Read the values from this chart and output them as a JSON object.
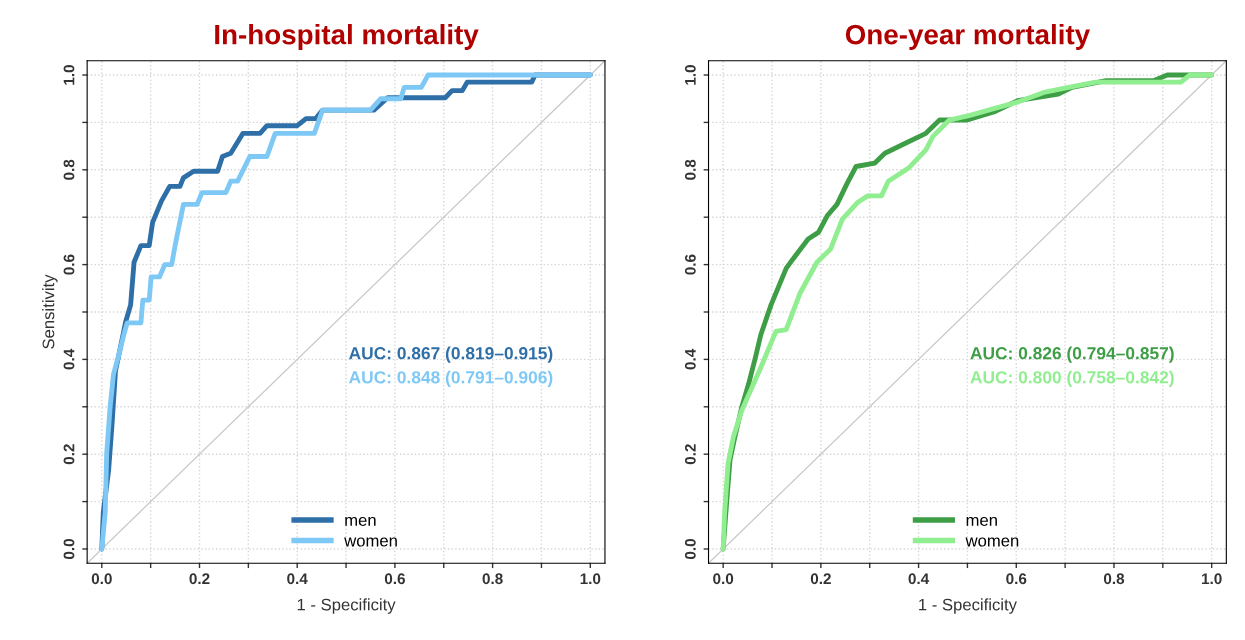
{
  "chart_data": [
    {
      "type": "line",
      "title": "In-hospital mortality",
      "xlabel": "1 - Specificity",
      "ylabel": "Sensitivity",
      "xlim": [
        -0.03,
        1.03
      ],
      "ylim": [
        -0.03,
        1.03
      ],
      "xticks": [
        {
          "value": 0,
          "label": "0.0"
        },
        {
          "value": 0.1,
          "label": null
        },
        {
          "value": 0.2,
          "label": "0.2"
        },
        {
          "value": 0.3,
          "label": null
        },
        {
          "value": 0.4,
          "label": "0.4"
        },
        {
          "value": 0.5,
          "label": null
        },
        {
          "value": 0.6,
          "label": "0.6"
        },
        {
          "value": 0.7,
          "label": null
        },
        {
          "value": 0.8,
          "label": "0.8"
        },
        {
          "value": 0.9,
          "label": null
        },
        {
          "value": 1,
          "label": "1.0"
        }
      ],
      "yticks": [
        {
          "value": 0,
          "label": "0.0"
        },
        {
          "value": 0.1,
          "label": null
        },
        {
          "value": 0.2,
          "label": "0.2"
        },
        {
          "value": 0.3,
          "label": null
        },
        {
          "value": 0.4,
          "label": "0.4"
        },
        {
          "value": 0.5,
          "label": null
        },
        {
          "value": 0.6,
          "label": "0.6"
        },
        {
          "value": 0.7,
          "label": null
        },
        {
          "value": 0.8,
          "label": "0.8"
        },
        {
          "value": 0.9,
          "label": null
        },
        {
          "value": 1,
          "label": "1.0"
        }
      ],
      "grid": true,
      "legend": "bottom",
      "annotations": [
        "AUC: 0.867 (0.819–0.915)",
        "AUC: 0.848 (0.791–0.906)"
      ],
      "series": [
        {
          "name": "men",
          "color": "#2e6fa8",
          "x": [
            0,
            0.003,
            0.014,
            0.021,
            0.028,
            0.035,
            0.049,
            0.059,
            0.066,
            0.08,
            0.097,
            0.104,
            0.122,
            0.139,
            0.16,
            0.167,
            0.188,
            0.237,
            0.247,
            0.264,
            0.289,
            0.324,
            0.338,
            0.4,
            0.418,
            0.438,
            0.452,
            0.557,
            0.585,
            0.703,
            0.717,
            0.738,
            0.748,
            0.88,
            0.887,
            1
          ],
          "values": [
            0,
            0.077,
            0.167,
            0.264,
            0.376,
            0.41,
            0.48,
            0.515,
            0.605,
            0.64,
            0.64,
            0.689,
            0.734,
            0.765,
            0.765,
            0.783,
            0.797,
            0.797,
            0.828,
            0.835,
            0.877,
            0.877,
            0.893,
            0.893,
            0.908,
            0.908,
            0.926,
            0.926,
            0.952,
            0.952,
            0.967,
            0.967,
            0.985,
            0.985,
            1,
            1
          ]
        },
        {
          "name": "women",
          "color": "#7ec8f5",
          "x": [
            0,
            0.007,
            0.01,
            0.017,
            0.024,
            0.035,
            0.045,
            0.052,
            0.08,
            0.084,
            0.097,
            0.101,
            0.118,
            0.129,
            0.143,
            0.15,
            0.167,
            0.195,
            0.205,
            0.254,
            0.264,
            0.278,
            0.303,
            0.338,
            0.355,
            0.435,
            0.452,
            0.55,
            0.571,
            0.612,
            0.619,
            0.654,
            0.668,
            1
          ],
          "values": [
            0,
            0.077,
            0.202,
            0.299,
            0.369,
            0.41,
            0.452,
            0.477,
            0.477,
            0.525,
            0.525,
            0.574,
            0.574,
            0.6,
            0.6,
            0.64,
            0.727,
            0.727,
            0.752,
            0.752,
            0.776,
            0.776,
            0.828,
            0.828,
            0.877,
            0.877,
            0.926,
            0.926,
            0.95,
            0.95,
            0.974,
            0.974,
            1,
            1
          ]
        },
        {
          "color": "#c8c8c8",
          "x": [
            -0.03,
            1.03
          ],
          "values": [
            -0.03,
            1.03
          ]
        }
      ]
    },
    {
      "type": "line",
      "title": "One-year mortality",
      "xlabel": "1 - Specificity",
      "xlim": [
        -0.03,
        1.03
      ],
      "ylim": [
        -0.03,
        1.03
      ],
      "xticks": [
        {
          "value": 0,
          "label": "0.0"
        },
        {
          "value": 0.1,
          "label": null
        },
        {
          "value": 0.2,
          "label": "0.2"
        },
        {
          "value": 0.3,
          "label": null
        },
        {
          "value": 0.4,
          "label": "0.4"
        },
        {
          "value": 0.5,
          "label": null
        },
        {
          "value": 0.6,
          "label": "0.6"
        },
        {
          "value": 0.7,
          "label": null
        },
        {
          "value": 0.8,
          "label": "0.8"
        },
        {
          "value": 0.9,
          "label": null
        },
        {
          "value": 1,
          "label": "1.0"
        }
      ],
      "yticks": [
        {
          "value": 0,
          "label": "0.0"
        },
        {
          "value": 0.1,
          "label": null
        },
        {
          "value": 0.2,
          "label": "0.2"
        },
        {
          "value": 0.3,
          "label": null
        },
        {
          "value": 0.4,
          "label": "0.4"
        },
        {
          "value": 0.5,
          "label": null
        },
        {
          "value": 0.6,
          "label": "0.6"
        },
        {
          "value": 0.7,
          "label": null
        },
        {
          "value": 0.8,
          "label": "0.8"
        },
        {
          "value": 0.9,
          "label": null
        },
        {
          "value": 1,
          "label": "1.0"
        }
      ],
      "grid": true,
      "legend": "bottom",
      "annotations": [
        "AUC: 0.826 (0.794–0.857)",
        "AUC: 0.800 (0.758–0.842)"
      ],
      "series": [
        {
          "name": "men",
          "color": "#3e9e46",
          "x": [
            0,
            0.007,
            0.014,
            0.024,
            0.038,
            0.052,
            0.066,
            0.077,
            0.098,
            0.129,
            0.143,
            0.174,
            0.195,
            0.213,
            0.233,
            0.254,
            0.272,
            0.31,
            0.331,
            0.373,
            0.415,
            0.443,
            0.498,
            0.554,
            0.603,
            0.686,
            0.714,
            0.784,
            0.881,
            0.909,
            0.944,
            1
          ],
          "values": [
            0,
            0.097,
            0.188,
            0.237,
            0.299,
            0.348,
            0.404,
            0.452,
            0.515,
            0.592,
            0.612,
            0.654,
            0.668,
            0.703,
            0.727,
            0.772,
            0.807,
            0.814,
            0.835,
            0.856,
            0.877,
            0.905,
            0.905,
            0.922,
            0.946,
            0.96,
            0.974,
            0.988,
            0.988,
            1,
            1,
            1
          ]
        },
        {
          "name": "women",
          "color": "#90ee90",
          "x": [
            0,
            0.003,
            0.01,
            0.021,
            0.038,
            0.059,
            0.077,
            0.108,
            0.129,
            0.157,
            0.192,
            0.22,
            0.244,
            0.275,
            0.296,
            0.324,
            0.338,
            0.38,
            0.415,
            0.429,
            0.463,
            0.505,
            0.554,
            0.603,
            0.659,
            0.707,
            0.763,
            0.937,
            0.955,
            1
          ],
          "values": [
            0,
            0.077,
            0.181,
            0.237,
            0.292,
            0.341,
            0.383,
            0.459,
            0.463,
            0.539,
            0.605,
            0.633,
            0.696,
            0.731,
            0.745,
            0.745,
            0.776,
            0.804,
            0.842,
            0.87,
            0.905,
            0.915,
            0.929,
            0.943,
            0.964,
            0.974,
            0.985,
            0.985,
            1,
            1
          ]
        },
        {
          "color": "#c8c8c8",
          "x": [
            -0.03,
            1.03
          ],
          "values": [
            -0.03,
            1.03
          ]
        }
      ]
    }
  ]
}
